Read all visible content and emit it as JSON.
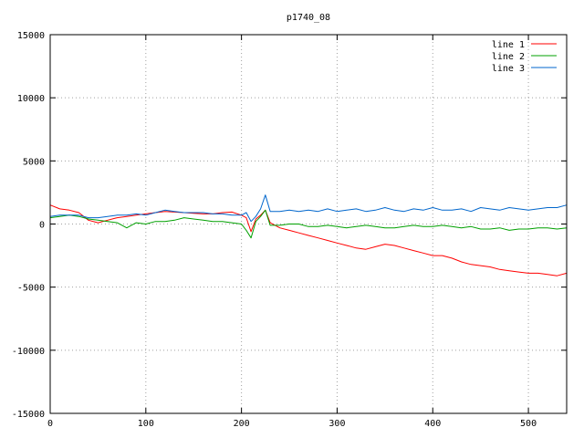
{
  "chart_data": {
    "type": "line",
    "title": "p1740_08",
    "xlabel": "",
    "ylabel": "",
    "xlim": [
      0,
      540
    ],
    "ylim": [
      -15000,
      15000
    ],
    "xticks": [
      0,
      100,
      200,
      300,
      400,
      500
    ],
    "yticks": [
      -15000,
      -10000,
      -5000,
      0,
      5000,
      10000,
      15000
    ],
    "grid": true,
    "legend_position": "top-right",
    "series": [
      {
        "name": "line 1",
        "color": "#ff0000",
        "x": [
          0,
          10,
          20,
          30,
          40,
          50,
          60,
          70,
          80,
          90,
          100,
          110,
          120,
          130,
          140,
          150,
          160,
          170,
          180,
          190,
          200,
          205,
          210,
          215,
          220,
          225,
          230,
          240,
          250,
          260,
          270,
          280,
          290,
          300,
          310,
          320,
          330,
          340,
          350,
          360,
          370,
          380,
          390,
          400,
          410,
          420,
          430,
          440,
          450,
          460,
          470,
          480,
          490,
          500,
          510,
          520,
          530,
          540
        ],
        "y": [
          1500,
          1200,
          1100,
          900,
          300,
          100,
          300,
          500,
          600,
          700,
          800,
          900,
          1000,
          950,
          900,
          850,
          800,
          800,
          900,
          950,
          700,
          500,
          -600,
          400,
          700,
          1100,
          100,
          -300,
          -500,
          -700,
          -900,
          -1100,
          -1300,
          -1500,
          -1700,
          -1900,
          -2000,
          -1800,
          -1600,
          -1700,
          -1900,
          -2100,
          -2300,
          -2500,
          -2500,
          -2700,
          -3000,
          -3200,
          -3300,
          -3400,
          -3600,
          -3700,
          -3800,
          -3900,
          -3900,
          -4000,
          -4100,
          -3900
        ]
      },
      {
        "name": "line 2",
        "color": "#00a000",
        "x": [
          0,
          10,
          20,
          30,
          40,
          50,
          60,
          70,
          80,
          90,
          100,
          110,
          120,
          130,
          140,
          150,
          160,
          170,
          180,
          190,
          200,
          205,
          210,
          215,
          220,
          225,
          230,
          240,
          250,
          260,
          270,
          280,
          290,
          300,
          310,
          320,
          330,
          340,
          350,
          360,
          370,
          380,
          390,
          400,
          410,
          420,
          430,
          440,
          450,
          460,
          470,
          480,
          490,
          500,
          510,
          520,
          530,
          540
        ],
        "y": [
          500,
          600,
          700,
          600,
          400,
          300,
          200,
          100,
          -300,
          100,
          0,
          200,
          200,
          300,
          500,
          400,
          300,
          200,
          200,
          100,
          0,
          -500,
          -1100,
          200,
          600,
          1100,
          -100,
          -100,
          0,
          0,
          -200,
          -200,
          -100,
          -200,
          -300,
          -200,
          -100,
          -200,
          -300,
          -300,
          -200,
          -100,
          -200,
          -200,
          -100,
          -200,
          -300,
          -200,
          -400,
          -400,
          -300,
          -500,
          -400,
          -400,
          -300,
          -300,
          -400,
          -300
        ]
      },
      {
        "name": "line 3",
        "color": "#0066cc",
        "x": [
          0,
          10,
          20,
          30,
          40,
          50,
          60,
          70,
          80,
          90,
          100,
          110,
          120,
          130,
          140,
          150,
          160,
          170,
          180,
          190,
          200,
          205,
          210,
          215,
          220,
          225,
          230,
          240,
          250,
          260,
          270,
          280,
          290,
          300,
          310,
          320,
          330,
          340,
          350,
          360,
          370,
          380,
          390,
          400,
          410,
          420,
          430,
          440,
          450,
          460,
          470,
          480,
          490,
          500,
          510,
          520,
          530,
          540
        ],
        "y": [
          600,
          700,
          700,
          700,
          500,
          500,
          600,
          700,
          700,
          800,
          700,
          900,
          1100,
          1000,
          900,
          900,
          900,
          800,
          800,
          700,
          700,
          900,
          200,
          600,
          1200,
          2300,
          1000,
          1000,
          1100,
          1000,
          1100,
          1000,
          1200,
          1000,
          1100,
          1200,
          1000,
          1100,
          1300,
          1100,
          1000,
          1200,
          1100,
          1300,
          1100,
          1100,
          1200,
          1000,
          1300,
          1200,
          1100,
          1300,
          1200,
          1100,
          1200,
          1300,
          1300,
          1500
        ]
      }
    ]
  }
}
